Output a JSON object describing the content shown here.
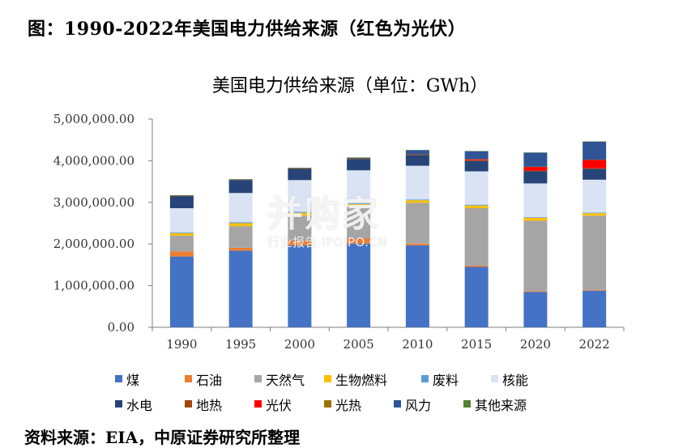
{
  "figure_caption": "图：1990-2022年美国电力供给来源（红色为光伏）",
  "watermark": {
    "brand": "并购家",
    "sub": "行业报告 IPOIPO.CN"
  },
  "footer_text": "资料来源：EIA，中原证券研究所整理",
  "chart_data": {
    "type": "bar",
    "stacked": true,
    "title": "美国电力供给来源（单位：GWh）",
    "xlabel": "",
    "ylabel": "",
    "ylim": [
      0,
      5000000
    ],
    "yticks": [
      "0.00",
      "1,000,000.00",
      "2,000,000.00",
      "3,000,000.00",
      "4,000,000.00",
      "5,000,000.00"
    ],
    "categories": [
      "1990",
      "1995",
      "2000",
      "2005",
      "2010",
      "2015",
      "2020",
      "2022"
    ],
    "legend_position": "bottom",
    "series": [
      {
        "name": "煤",
        "color": "#4472C4",
        "values": [
          1700000,
          1840000,
          1970000,
          2010000,
          1970000,
          1450000,
          850000,
          880000
        ]
      },
      {
        "name": "石油",
        "color": "#ED7D31",
        "values": [
          120000,
          70000,
          110000,
          120000,
          40000,
          30000,
          20000,
          20000
        ]
      },
      {
        "name": "天然气",
        "color": "#A5A5A5",
        "values": [
          380000,
          520000,
          600000,
          770000,
          980000,
          1380000,
          1690000,
          1780000
        ]
      },
      {
        "name": "生物燃料",
        "color": "#FFC000",
        "values": [
          60000,
          70000,
          70000,
          60000,
          60000,
          65000,
          70000,
          60000
        ]
      },
      {
        "name": "废料",
        "color": "#5B9BD5",
        "values": [
          20000,
          25000,
          25000,
          20000,
          20000,
          20000,
          15000,
          15000
        ]
      },
      {
        "name": "核能",
        "color": "#DAE3F3",
        "values": [
          580000,
          700000,
          760000,
          790000,
          810000,
          800000,
          810000,
          790000
        ]
      },
      {
        "name": "水电",
        "color": "#264478",
        "values": [
          290000,
          310000,
          270000,
          270000,
          260000,
          250000,
          290000,
          260000
        ]
      },
      {
        "name": "地热",
        "color": "#9E480E",
        "values": [
          15000,
          15000,
          15000,
          16000,
          16000,
          16000,
          17000,
          16000
        ]
      },
      {
        "name": "光伏",
        "color": "#FF0000",
        "values": [
          0,
          0,
          0,
          0,
          1000,
          25000,
          90000,
          200000
        ]
      },
      {
        "name": "光热",
        "color": "#997300",
        "values": [
          500,
          500,
          500,
          500,
          800,
          3200,
          3100,
          3000
        ]
      },
      {
        "name": "风力",
        "color": "#2F5597",
        "values": [
          3000,
          3000,
          6000,
          18000,
          95000,
          190000,
          338000,
          434000
        ]
      },
      {
        "name": "其他来源",
        "color": "#548235",
        "values": [
          1000,
          2000,
          3000,
          4000,
          4000,
          4000,
          5000,
          4000
        ]
      }
    ]
  }
}
